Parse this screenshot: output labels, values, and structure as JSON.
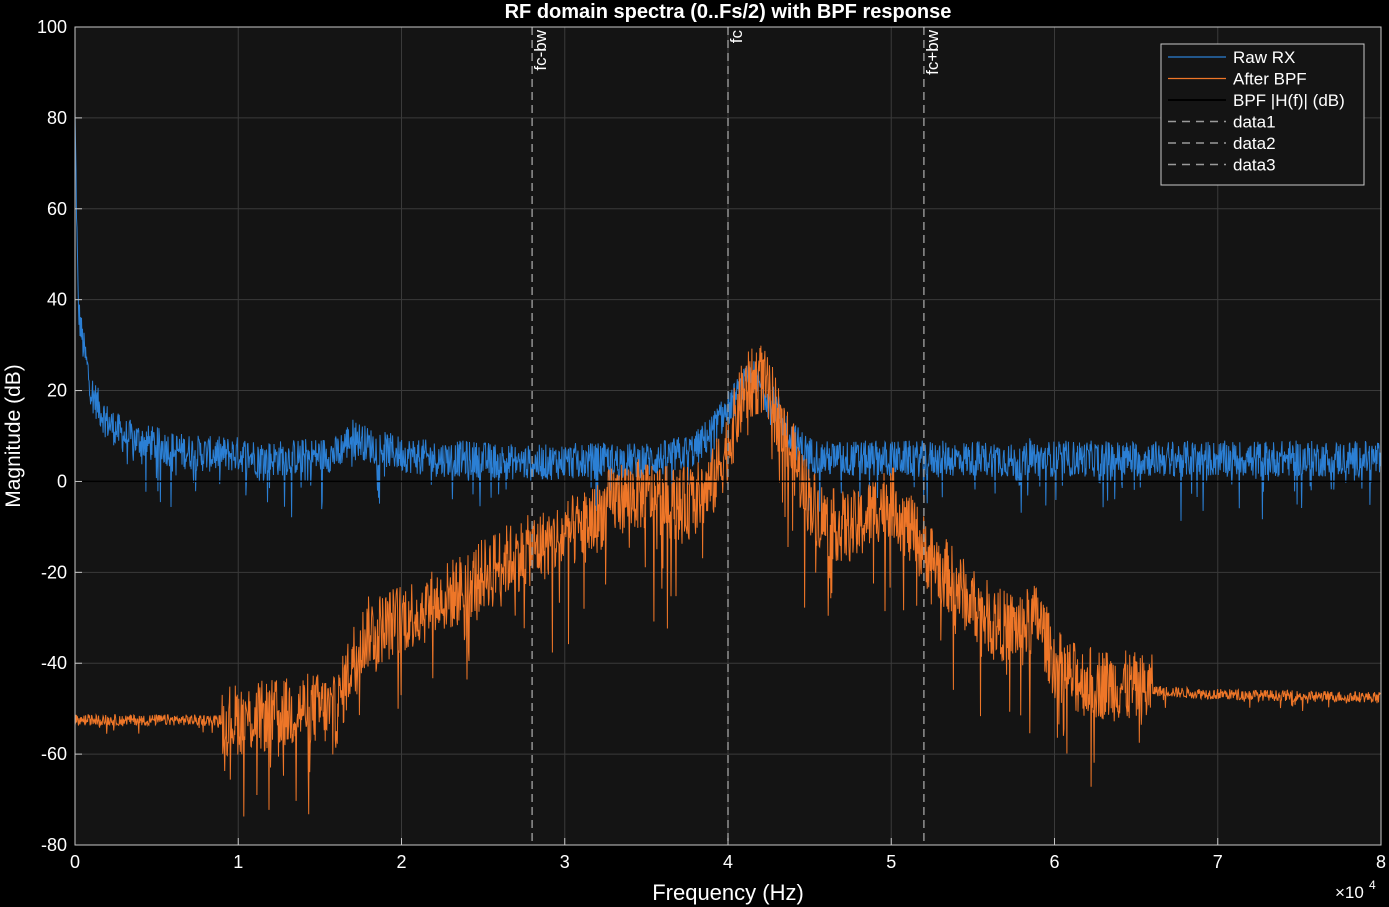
{
  "chart_data": {
    "type": "line",
    "title": "RF domain spectra (0..Fs/2) with BPF response",
    "xlabel": "Frequency (Hz)",
    "ylabel": "Magnitude (dB)",
    "x_exponent_label": "×10",
    "x_exponent_power": "4",
    "xlim": [
      0,
      80000
    ],
    "ylim": [
      -80,
      100
    ],
    "grid": true,
    "x_ticks": [
      {
        "value": 0,
        "label": "0"
      },
      {
        "value": 10000,
        "label": "1"
      },
      {
        "value": 20000,
        "label": "2"
      },
      {
        "value": 30000,
        "label": "3"
      },
      {
        "value": 40000,
        "label": "4"
      },
      {
        "value": 50000,
        "label": "5"
      },
      {
        "value": 60000,
        "label": "6"
      },
      {
        "value": 70000,
        "label": "7"
      },
      {
        "value": 80000,
        "label": "8"
      }
    ],
    "y_ticks": [
      {
        "value": -80,
        "label": "-80"
      },
      {
        "value": -60,
        "label": "-60"
      },
      {
        "value": -40,
        "label": "-40"
      },
      {
        "value": -20,
        "label": "-20"
      },
      {
        "value": 0,
        "label": "0"
      },
      {
        "value": 20,
        "label": "20"
      },
      {
        "value": 40,
        "label": "40"
      },
      {
        "value": 60,
        "label": "60"
      },
      {
        "value": 80,
        "label": "80"
      },
      {
        "value": 100,
        "label": "100"
      }
    ],
    "legend_position": "top-right",
    "colors": {
      "figure_bg": "#000000",
      "axes_bg": "#141414",
      "grid": "#3a3a3a",
      "axis_text": "#ffffff",
      "raw": "#2b7fd4",
      "bpf_out": "#ee7628",
      "bpf_h": "#000000",
      "marker": "#9a9a9a"
    },
    "series": [
      {
        "name": "Raw RX",
        "color": "#2b7fd4",
        "noise_envelope": 4,
        "x": [
          0,
          200,
          500,
          1000,
          1500,
          2000,
          3000,
          4000,
          5000,
          6000,
          8000,
          10000,
          12000,
          14000,
          16000,
          17000,
          18000,
          20000,
          22000,
          24000,
          26000,
          28000,
          30000,
          32000,
          34000,
          36000,
          38000,
          39000,
          40000,
          41000,
          41500,
          42000,
          43000,
          44000,
          45000,
          46000,
          48000,
          50000,
          52000,
          54000,
          56000,
          57000,
          58000,
          58500,
          59000,
          60000,
          62000,
          64000,
          66000,
          68000,
          70000,
          72000,
          74000,
          76000,
          78000,
          80000
        ],
        "y": [
          80,
          38,
          30,
          20,
          16,
          13,
          10,
          9,
          8,
          7,
          6,
          6,
          5,
          5.5,
          6,
          10,
          8,
          6,
          5,
          5,
          4.5,
          4,
          4.5,
          4.5,
          4.5,
          5,
          7,
          11,
          16,
          21,
          23,
          21,
          16,
          9,
          6,
          5,
          5,
          5,
          5,
          5,
          5,
          5,
          3,
          6,
          5,
          5,
          5,
          5,
          5,
          5,
          5,
          5,
          5,
          5,
          5,
          5
        ]
      },
      {
        "name": "After BPF",
        "color": "#ee7628",
        "noise_envelope": 8,
        "x": [
          0,
          5000,
          9000,
          11000,
          13000,
          14000,
          15000,
          16000,
          17000,
          18000,
          19000,
          20000,
          22000,
          24000,
          26000,
          28000,
          30000,
          32000,
          33000,
          34000,
          35000,
          36000,
          37000,
          38000,
          39000,
          40000,
          41000,
          42000,
          43000,
          44000,
          45000,
          46000,
          47000,
          48000,
          49000,
          50000,
          51000,
          52000,
          53000,
          54000,
          55000,
          56000,
          57000,
          58000,
          59000,
          60000,
          61000,
          62000,
          64000,
          66000,
          68000,
          70000,
          72000,
          75000,
          80000
        ],
        "y": [
          -52.5,
          -52.5,
          -52.5,
          -52,
          -51,
          -50,
          -50,
          -51,
          -39,
          -33,
          -32,
          -30,
          -27,
          -23,
          -18,
          -15,
          -12,
          -8,
          -4,
          -3,
          -3,
          -4,
          -5,
          -4,
          -1,
          8,
          20,
          23,
          15,
          5,
          -4,
          -9,
          -10,
          -10,
          -6,
          -4,
          -10,
          -15,
          -19,
          -23,
          -27,
          -30,
          -32,
          -32,
          -30,
          -40,
          -43,
          -44,
          -45,
          -46,
          -46.5,
          -46.8,
          -47,
          -47.2,
          -47.5
        ]
      },
      {
        "name": "BPF |H(f)| (dB)",
        "color": "#000000",
        "noise_envelope": 0,
        "x": [
          0,
          80000
        ],
        "y": [
          0,
          0
        ]
      }
    ],
    "markers": [
      {
        "name": "data1",
        "x": 28000,
        "label": "fc-bw",
        "color": "#9a9a9a"
      },
      {
        "name": "data2",
        "x": 40000,
        "label": "fc",
        "color": "#9a9a9a"
      },
      {
        "name": "data3",
        "x": 52000,
        "label": "fc+bw",
        "color": "#9a9a9a"
      }
    ]
  }
}
